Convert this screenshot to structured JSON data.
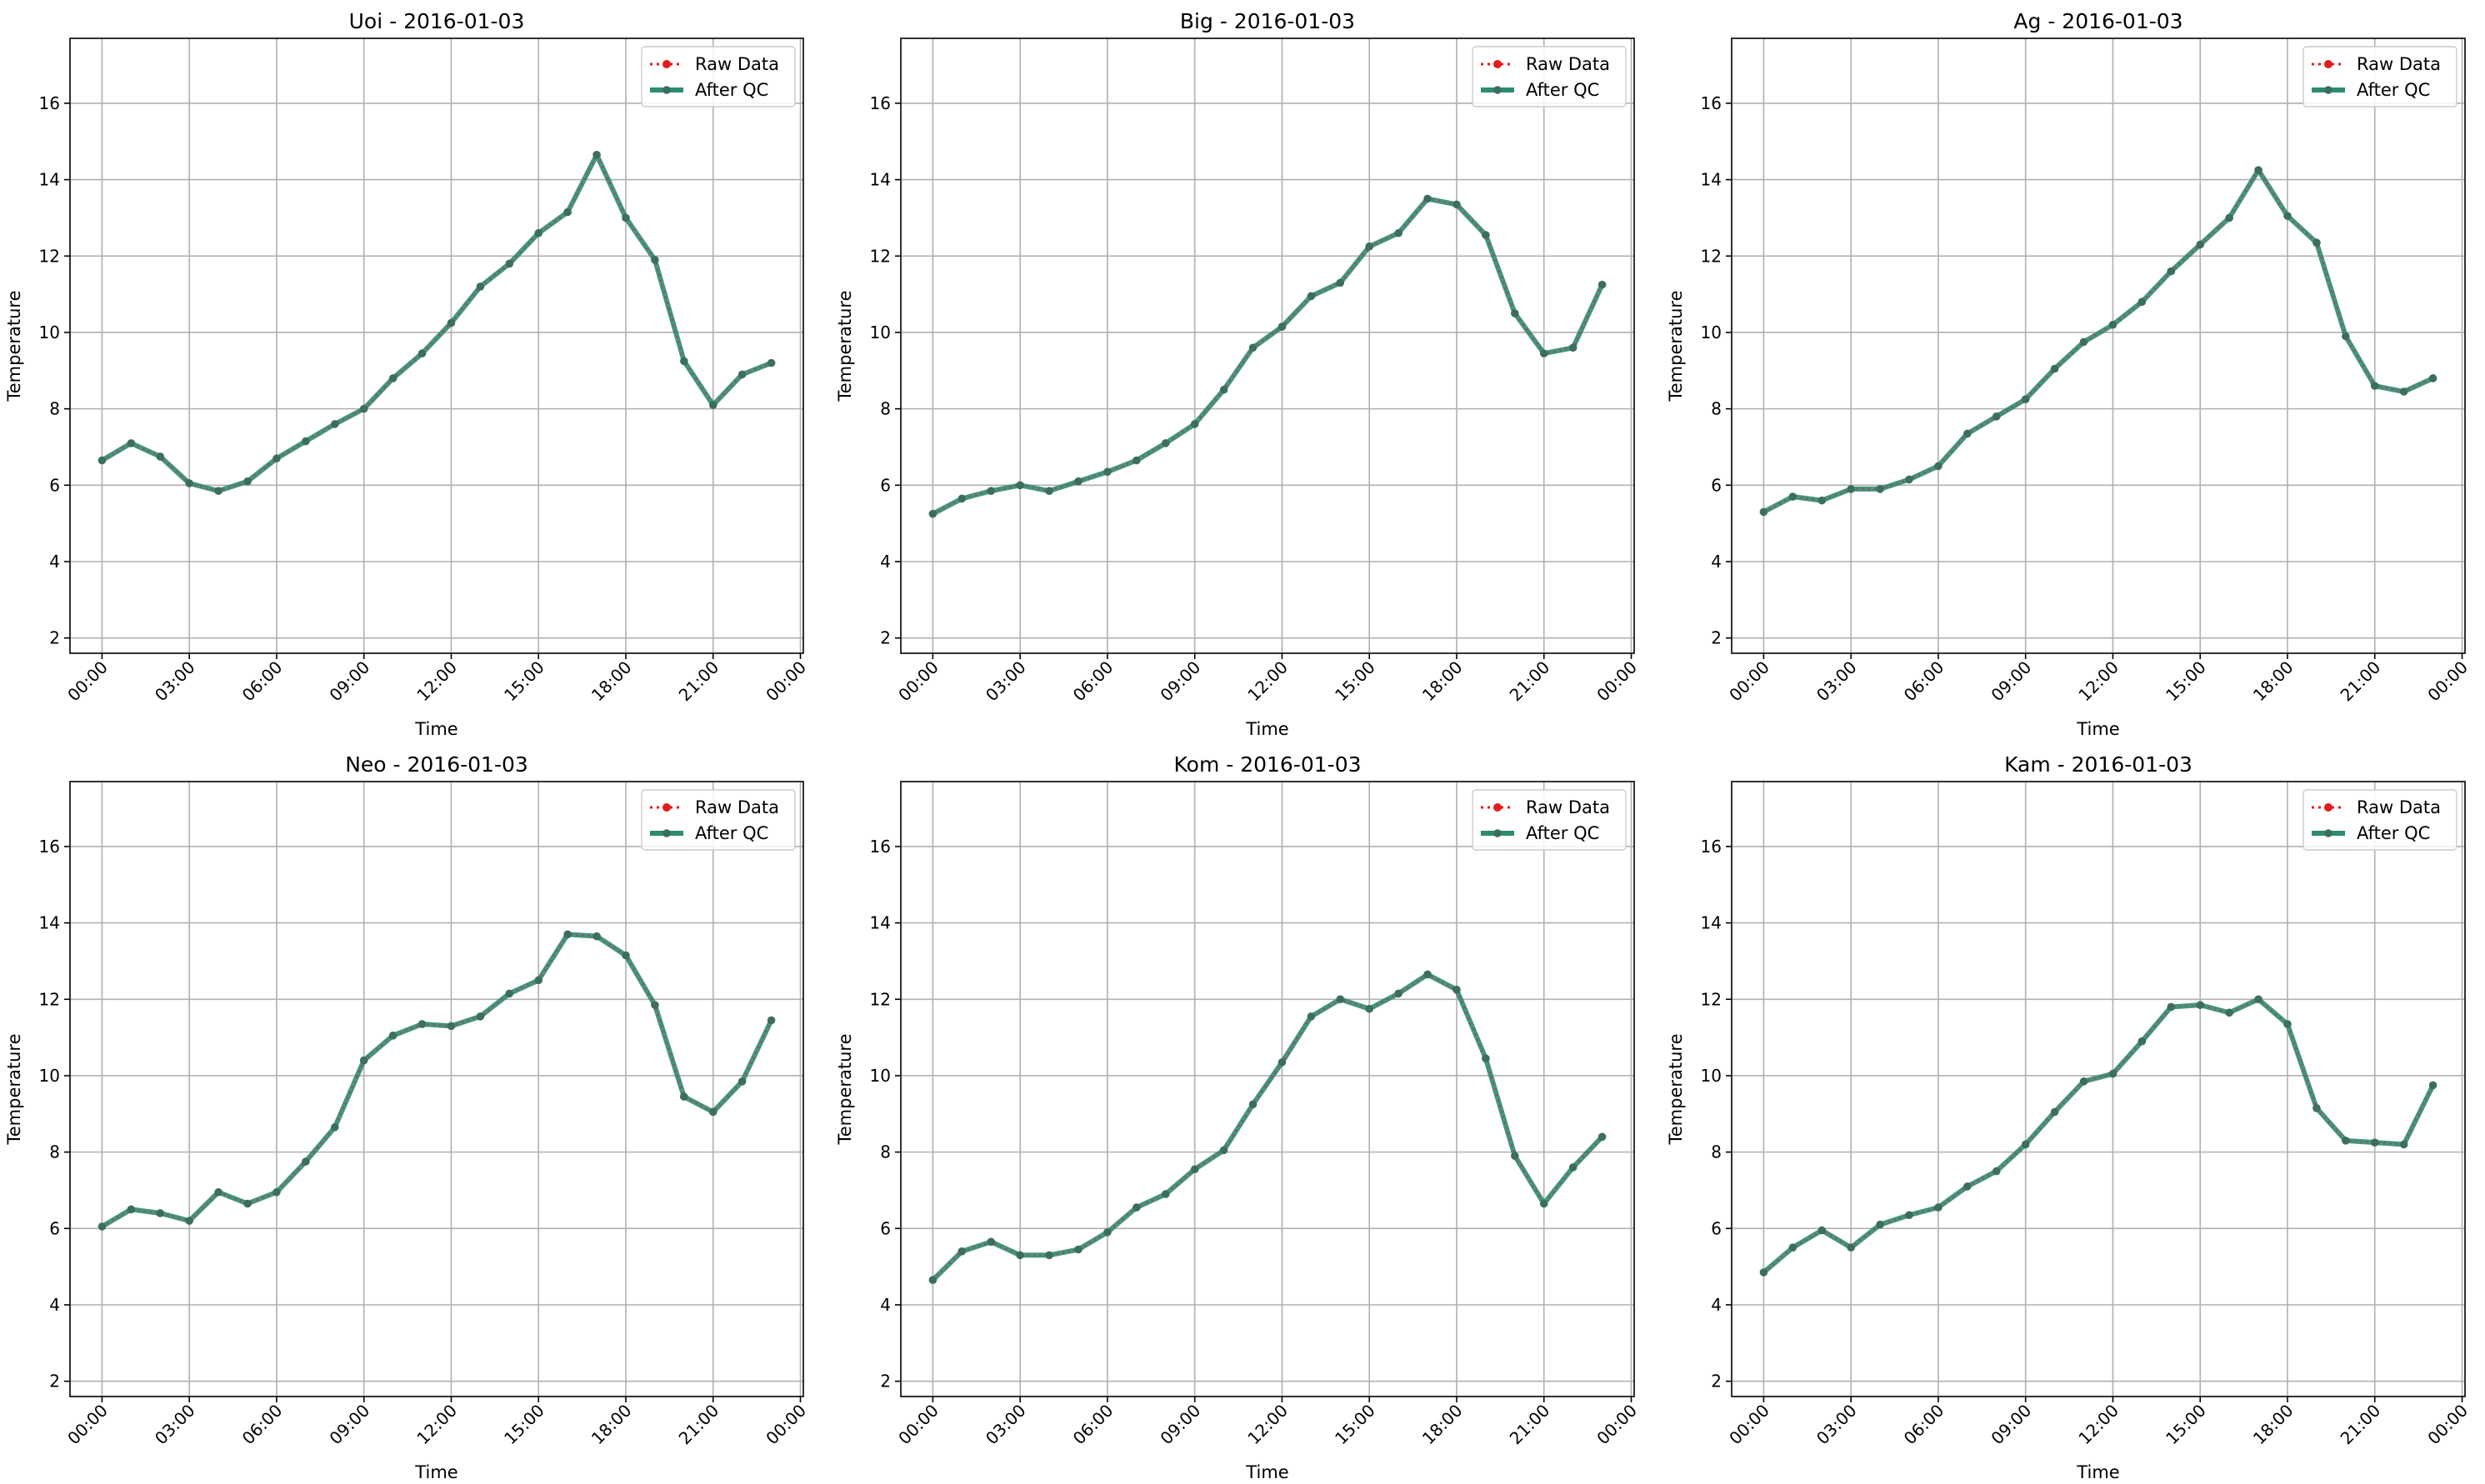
{
  "figure": {
    "x_tick_labels": [
      "00:00",
      "03:00",
      "06:00",
      "09:00",
      "12:00",
      "15:00",
      "18:00",
      "21:00",
      "00:00"
    ],
    "y_ticks": [
      2,
      4,
      6,
      8,
      10,
      12,
      14,
      16
    ],
    "colors": {
      "raw": "#e41a1c",
      "after_qc": "#2e8b71",
      "marker": "#3c6e5f",
      "grid": "#b0b0b0"
    }
  },
  "chart_data": [
    {
      "type": "line",
      "title": "Uoi - 2016-01-03",
      "xlabel": "Time",
      "ylabel": "Temperature",
      "ylim": [
        1.6,
        17.7
      ],
      "grid": true,
      "legend_position": "top-right",
      "x": [
        "00:00",
        "01:00",
        "02:00",
        "03:00",
        "04:00",
        "05:00",
        "06:00",
        "07:00",
        "08:00",
        "09:00",
        "10:00",
        "11:00",
        "12:00",
        "13:00",
        "14:00",
        "15:00",
        "16:00",
        "17:00",
        "18:00",
        "19:00",
        "20:00",
        "21:00",
        "22:00",
        "23:00"
      ],
      "series": [
        {
          "name": "Raw Data",
          "values": [
            6.65,
            7.1,
            6.75,
            6.05,
            5.85,
            6.1,
            6.7,
            7.15,
            7.6,
            8.0,
            8.8,
            9.45,
            10.25,
            11.2,
            11.8,
            12.6,
            13.15,
            14.65,
            13.0,
            11.9,
            9.25,
            8.1,
            8.9,
            9.2
          ]
        },
        {
          "name": "After QC",
          "values": [
            6.65,
            7.1,
            6.75,
            6.05,
            5.85,
            6.1,
            6.7,
            7.15,
            7.6,
            8.0,
            8.8,
            9.45,
            10.25,
            11.2,
            11.8,
            12.6,
            13.15,
            14.65,
            13.0,
            11.9,
            9.25,
            8.1,
            8.9,
            9.2
          ]
        }
      ]
    },
    {
      "type": "line",
      "title": "Big - 2016-01-03",
      "xlabel": "Time",
      "ylabel": "Temperature",
      "ylim": [
        1.6,
        17.7
      ],
      "grid": true,
      "legend_position": "top-right",
      "x": [
        "00:00",
        "01:00",
        "02:00",
        "03:00",
        "04:00",
        "05:00",
        "06:00",
        "07:00",
        "08:00",
        "09:00",
        "10:00",
        "11:00",
        "12:00",
        "13:00",
        "14:00",
        "15:00",
        "16:00",
        "17:00",
        "18:00",
        "19:00",
        "20:00",
        "21:00",
        "22:00",
        "23:00"
      ],
      "series": [
        {
          "name": "Raw Data",
          "values": [
            5.25,
            5.65,
            5.85,
            6.0,
            5.85,
            6.1,
            6.35,
            6.65,
            7.1,
            7.6,
            8.5,
            9.6,
            10.15,
            10.95,
            11.3,
            12.25,
            12.6,
            13.5,
            13.35,
            12.55,
            10.5,
            9.45,
            9.6,
            11.25
          ]
        },
        {
          "name": "After QC",
          "values": [
            5.25,
            5.65,
            5.85,
            6.0,
            5.85,
            6.1,
            6.35,
            6.65,
            7.1,
            7.6,
            8.5,
            9.6,
            10.15,
            10.95,
            11.3,
            12.25,
            12.6,
            13.5,
            13.35,
            12.55,
            10.5,
            9.45,
            9.6,
            11.25
          ]
        }
      ]
    },
    {
      "type": "line",
      "title": "Ag - 2016-01-03",
      "xlabel": "Time",
      "ylabel": "Temperature",
      "ylim": [
        1.6,
        17.7
      ],
      "grid": true,
      "legend_position": "top-right",
      "x": [
        "00:00",
        "01:00",
        "02:00",
        "03:00",
        "04:00",
        "05:00",
        "06:00",
        "07:00",
        "08:00",
        "09:00",
        "10:00",
        "11:00",
        "12:00",
        "13:00",
        "14:00",
        "15:00",
        "16:00",
        "17:00",
        "18:00",
        "19:00",
        "20:00",
        "21:00",
        "22:00",
        "23:00"
      ],
      "series": [
        {
          "name": "Raw Data",
          "values": [
            5.3,
            5.7,
            5.6,
            5.9,
            5.9,
            6.15,
            6.5,
            7.35,
            7.8,
            8.25,
            9.05,
            9.75,
            10.2,
            10.8,
            11.6,
            12.3,
            13.0,
            14.25,
            13.05,
            12.35,
            9.9,
            8.6,
            8.45,
            8.8
          ]
        },
        {
          "name": "After QC",
          "values": [
            5.3,
            5.7,
            5.6,
            5.9,
            5.9,
            6.15,
            6.5,
            7.35,
            7.8,
            8.25,
            9.05,
            9.75,
            10.2,
            10.8,
            11.6,
            12.3,
            13.0,
            14.25,
            13.05,
            12.35,
            9.9,
            8.6,
            8.45,
            8.8
          ]
        }
      ]
    },
    {
      "type": "line",
      "title": "Neo - 2016-01-03",
      "xlabel": "Time",
      "ylabel": "Temperature",
      "ylim": [
        1.6,
        17.7
      ],
      "grid": true,
      "legend_position": "top-right",
      "x": [
        "00:00",
        "01:00",
        "02:00",
        "03:00",
        "04:00",
        "05:00",
        "06:00",
        "07:00",
        "08:00",
        "09:00",
        "10:00",
        "11:00",
        "12:00",
        "13:00",
        "14:00",
        "15:00",
        "16:00",
        "17:00",
        "18:00",
        "19:00",
        "20:00",
        "21:00",
        "22:00",
        "23:00"
      ],
      "series": [
        {
          "name": "Raw Data",
          "values": [
            6.05,
            6.5,
            6.4,
            6.2,
            6.95,
            6.65,
            6.95,
            7.75,
            8.65,
            10.4,
            11.05,
            11.35,
            11.3,
            11.55,
            12.15,
            12.5,
            13.7,
            13.65,
            13.15,
            11.85,
            9.45,
            9.05,
            9.85,
            11.45
          ]
        },
        {
          "name": "After QC",
          "values": [
            6.05,
            6.5,
            6.4,
            6.2,
            6.95,
            6.65,
            6.95,
            7.75,
            8.65,
            10.4,
            11.05,
            11.35,
            11.3,
            11.55,
            12.15,
            12.5,
            13.7,
            13.65,
            13.15,
            11.85,
            9.45,
            9.05,
            9.85,
            11.45
          ]
        }
      ]
    },
    {
      "type": "line",
      "title": "Kom - 2016-01-03",
      "xlabel": "Time",
      "ylabel": "Temperature",
      "ylim": [
        1.6,
        17.7
      ],
      "grid": true,
      "legend_position": "top-right",
      "x": [
        "00:00",
        "01:00",
        "02:00",
        "03:00",
        "04:00",
        "05:00",
        "06:00",
        "07:00",
        "08:00",
        "09:00",
        "10:00",
        "11:00",
        "12:00",
        "13:00",
        "14:00",
        "15:00",
        "16:00",
        "17:00",
        "18:00",
        "19:00",
        "20:00",
        "21:00",
        "22:00",
        "23:00"
      ],
      "series": [
        {
          "name": "Raw Data",
          "values": [
            4.65,
            5.4,
            5.65,
            5.3,
            5.3,
            5.45,
            5.9,
            6.55,
            6.9,
            7.55,
            8.05,
            9.25,
            10.35,
            11.55,
            12.0,
            11.75,
            12.15,
            12.65,
            12.25,
            10.45,
            7.9,
            6.65,
            7.6,
            8.4
          ]
        },
        {
          "name": "After QC",
          "values": [
            4.65,
            5.4,
            5.65,
            5.3,
            5.3,
            5.45,
            5.9,
            6.55,
            6.9,
            7.55,
            8.05,
            9.25,
            10.35,
            11.55,
            12.0,
            11.75,
            12.15,
            12.65,
            12.25,
            10.45,
            7.9,
            6.65,
            7.6,
            8.4
          ]
        }
      ]
    },
    {
      "type": "line",
      "title": "Kam - 2016-01-03",
      "xlabel": "Time",
      "ylabel": "Temperature",
      "ylim": [
        1.6,
        17.7
      ],
      "grid": true,
      "legend_position": "top-right",
      "x": [
        "00:00",
        "01:00",
        "02:00",
        "03:00",
        "04:00",
        "05:00",
        "06:00",
        "07:00",
        "08:00",
        "09:00",
        "10:00",
        "11:00",
        "12:00",
        "13:00",
        "14:00",
        "15:00",
        "16:00",
        "17:00",
        "18:00",
        "19:00",
        "20:00",
        "21:00",
        "22:00",
        "23:00"
      ],
      "series": [
        {
          "name": "Raw Data",
          "values": [
            4.85,
            5.5,
            5.95,
            5.5,
            6.1,
            6.35,
            6.55,
            7.1,
            7.5,
            8.2,
            9.05,
            9.85,
            10.05,
            10.9,
            11.8,
            11.85,
            11.65,
            12.0,
            11.35,
            9.15,
            8.3,
            8.25,
            8.2,
            9.75
          ]
        },
        {
          "name": "After QC",
          "values": [
            4.85,
            5.5,
            5.95,
            5.5,
            6.1,
            6.35,
            6.55,
            7.1,
            7.5,
            8.2,
            9.05,
            9.85,
            10.05,
            10.9,
            11.8,
            11.85,
            11.65,
            12.0,
            11.35,
            9.15,
            8.3,
            8.25,
            8.2,
            9.75
          ]
        }
      ]
    }
  ]
}
